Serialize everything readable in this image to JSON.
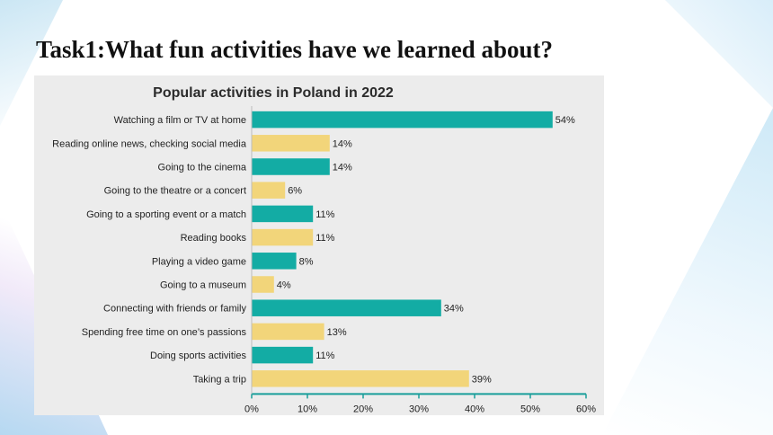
{
  "slide": {
    "title": "Task1:What fun activities have we learned about?"
  },
  "colors": {
    "teal": "#13aca4",
    "yellow": "#f2d57a",
    "panel": "#ececec",
    "axis": "#1a9e9a"
  },
  "chart_data": {
    "type": "bar",
    "orientation": "horizontal",
    "title": "Popular activities in Poland in 2022",
    "xlim": [
      0,
      60
    ],
    "x_ticks": [
      "0%",
      "10%",
      "20%",
      "30%",
      "40%",
      "50%",
      "60%"
    ],
    "x_tick_values": [
      0,
      10,
      20,
      30,
      40,
      50,
      60
    ],
    "grid": false,
    "categories": [
      "Watching a film or TV at home",
      "Reading online news, checking social media",
      "Going to the cinema",
      "Going to the theatre or a concert",
      "Going to a sporting event or a match",
      "Reading books",
      "Playing a video game",
      "Going to a museum",
      "Connecting with friends or family",
      "Spending free time on one’s passions",
      "Doing sports activities",
      "Taking a trip"
    ],
    "values": [
      54,
      14,
      14,
      6,
      11,
      11,
      8,
      4,
      34,
      13,
      11,
      39
    ],
    "value_labels": [
      "54%",
      "14%",
      "14%",
      "6%",
      "11%",
      "11%",
      "8%",
      "4%",
      "34%",
      "13%",
      "11%",
      "39%"
    ],
    "bar_colors": [
      "teal",
      "yellow",
      "teal",
      "yellow",
      "teal",
      "yellow",
      "teal",
      "yellow",
      "teal",
      "yellow",
      "teal",
      "yellow"
    ]
  }
}
